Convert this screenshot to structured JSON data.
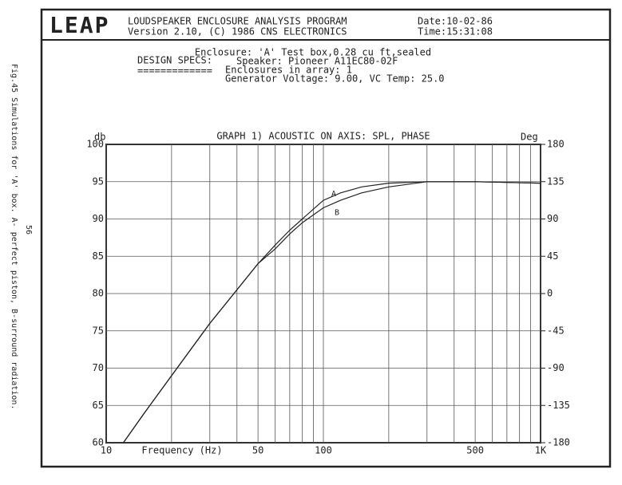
{
  "header": {
    "logo": "LEAP",
    "program": "LOUDSPEAKER ENCLOSURE ANALYSIS PROGRAM",
    "version": "Version 2.10, (C) 1986 CNS ELECTRONICS",
    "date": "Date:10-02-86",
    "time": "Time:15:31:08"
  },
  "specs": {
    "label": "DESIGN SPECS:",
    "underline": "=============",
    "lines": [
      "Enclosure: 'A' Test box,0.28 cu ft,sealed",
      "Speaker: Pioneer A11EC80-02F",
      "Enclosures in array: 1",
      "Generator Voltage:  9.00, VC Temp:  25.0"
    ]
  },
  "caption": "Fig.45 Simulations for 'A' box. A- perfect piston, B-surround radiation.",
  "page_number": "56",
  "chart_data": {
    "type": "line",
    "title": "GRAPH 1) ACOUSTIC ON AXIS: SPL, PHASE",
    "x_label": "Frequency (Hz)",
    "y_label": "db",
    "y2_label": "Deg",
    "x_scale": "log",
    "grid": true,
    "xlim": [
      10,
      1000
    ],
    "xticks": [
      10,
      50,
      100,
      500,
      {
        "value": 1000,
        "label": "1K"
      }
    ],
    "x_minor_grid": [
      20,
      30,
      40,
      60,
      70,
      80,
      90,
      200,
      300,
      400,
      600,
      700,
      800,
      900
    ],
    "ylim": [
      60,
      100
    ],
    "yticks": [
      60,
      65,
      70,
      75,
      80,
      85,
      90,
      95,
      100
    ],
    "y2lim": [
      -180,
      180
    ],
    "y2ticks": [
      -180,
      -135,
      -90,
      -45,
      0,
      45,
      90,
      135,
      180
    ],
    "x": [
      12,
      15,
      20,
      30,
      40,
      50,
      60,
      70,
      80,
      100,
      120,
      150,
      200,
      300,
      500,
      1000
    ],
    "series": [
      {
        "name": "A",
        "color": "#222222",
        "values": [
          60,
          64,
          69,
          76,
          80.5,
          84,
          86.5,
          88.5,
          90,
          92.5,
          93.5,
          94.3,
          94.8,
          95,
          95,
          94.8
        ]
      },
      {
        "name": "B",
        "color": "#222222",
        "values": [
          60,
          64,
          69,
          76,
          80.5,
          84,
          86,
          88,
          89.5,
          91.5,
          92.5,
          93.5,
          94.3,
          95,
          95,
          94.8
        ]
      }
    ]
  }
}
